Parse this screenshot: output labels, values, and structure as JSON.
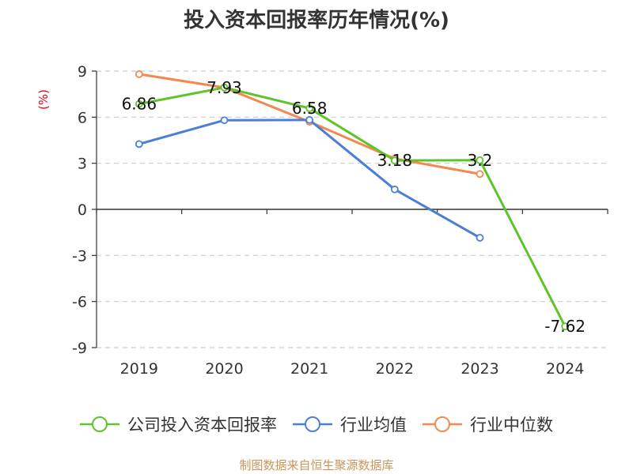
{
  "chart_data": {
    "type": "line",
    "title": "投入资本回报率历年情况(%)",
    "ylabel": "(%)",
    "xlabel": "",
    "categories": [
      "2019",
      "2020",
      "2021",
      "2022",
      "2023",
      "2024"
    ],
    "ylim": [
      -9,
      9
    ],
    "yticks": [
      9,
      6,
      3,
      0,
      -3,
      -6,
      -9
    ],
    "ytick_labels": [
      "9",
      "6",
      "3",
      "0",
      "-3",
      "-6",
      "-9"
    ],
    "grid": true,
    "legend_position": "bottom",
    "series": [
      {
        "name": "公司投入资本回报率",
        "color": "#5ec42a",
        "values": [
          6.86,
          7.93,
          6.58,
          3.18,
          3.2,
          -7.62
        ],
        "labels": [
          "6.86",
          "7.93",
          "6.58",
          "3.18",
          "3.2",
          "-7.62"
        ],
        "show_labels": true
      },
      {
        "name": "行业均值",
        "color": "#4a7fd8",
        "values": [
          4.25,
          5.8,
          5.82,
          1.3,
          -1.85,
          null
        ],
        "show_labels": false
      },
      {
        "name": "行业中位数",
        "color": "#f5884f",
        "values": [
          8.8,
          7.93,
          5.7,
          3.3,
          2.3,
          null
        ],
        "show_labels": false
      }
    ]
  },
  "source": "制图数据来自恒生聚源数据库"
}
